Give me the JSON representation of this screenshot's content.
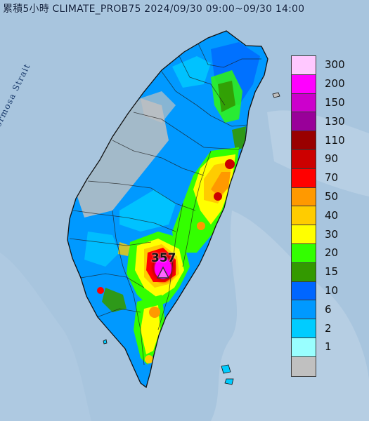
{
  "map": {
    "title": "累積5小時 CLIMATE_PROB75 2024/09/30 09:00~09/30 14:00",
    "strait_label": "Formosa Strait",
    "max_value_label": "357"
  },
  "legend": {
    "items": [
      {
        "label": "300",
        "color": "#ffc8ff"
      },
      {
        "label": "200",
        "color": "#ff00ff"
      },
      {
        "label": "150",
        "color": "#cc00cc"
      },
      {
        "label": "130",
        "color": "#990099"
      },
      {
        "label": "110",
        "color": "#990000"
      },
      {
        "label": "90",
        "color": "#cc0000"
      },
      {
        "label": "70",
        "color": "#ff0000"
      },
      {
        "label": "50",
        "color": "#ff9900"
      },
      {
        "label": "40",
        "color": "#ffcc00"
      },
      {
        "label": "30",
        "color": "#ffff00"
      },
      {
        "label": "20",
        "color": "#33ff00"
      },
      {
        "label": "15",
        "color": "#339900"
      },
      {
        "label": "10",
        "color": "#0066ff"
      },
      {
        "label": "6",
        "color": "#0099ff"
      },
      {
        "label": "2",
        "color": "#00ccff"
      },
      {
        "label": "1",
        "color": "#99ffff"
      },
      {
        "label": "",
        "color": "#c0c0c0"
      }
    ]
  }
}
